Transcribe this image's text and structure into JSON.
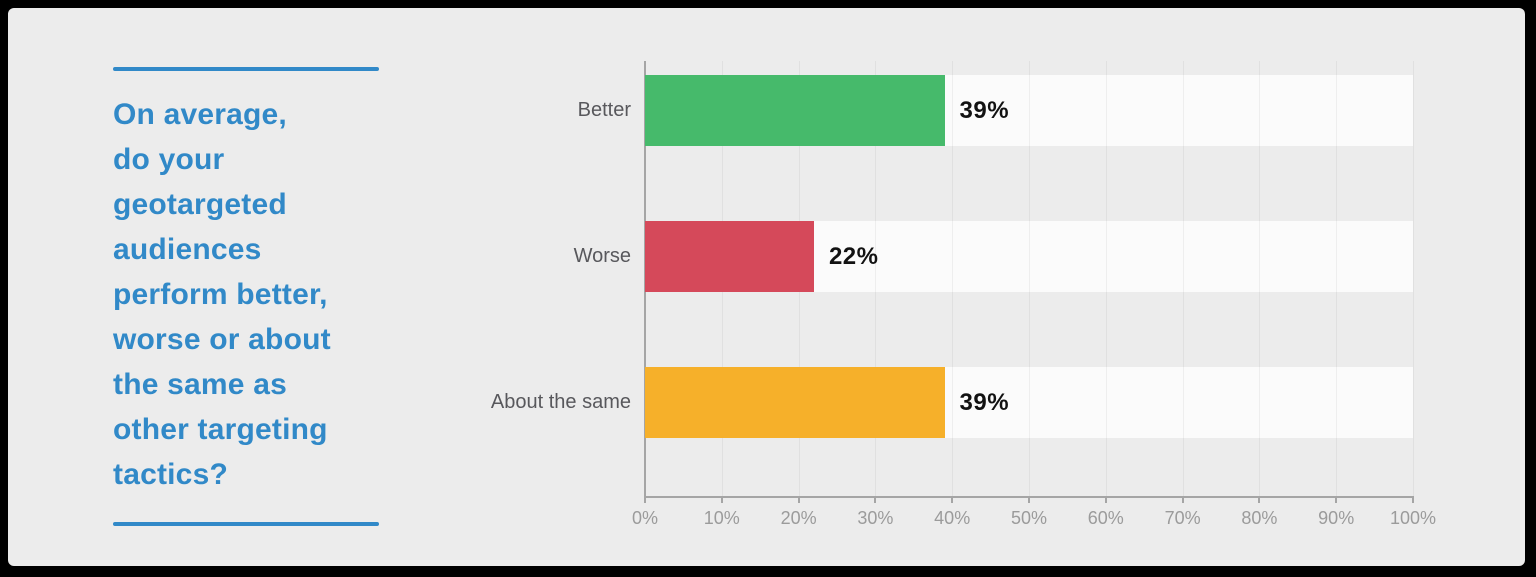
{
  "title_panel": {
    "title": "On average,\ndo your\ngeotargeted\naudiences\nperform better,\nworse or about\nthe same as\nother targeting\ntactics?",
    "accent_color": "#3189c8"
  },
  "chart_data": {
    "type": "bar",
    "orientation": "horizontal",
    "title": "On average, do your geotargeted audiences perform better, worse or about the same as other targeting tactics?",
    "categories": [
      "Better",
      "Worse",
      "About the same"
    ],
    "values": [
      39,
      22,
      39
    ],
    "value_labels": [
      "39%",
      "22%",
      "39%"
    ],
    "bar_colors": [
      "#46ba6b",
      "#d5495a",
      "#f6b02a"
    ],
    "x_ticks": [
      "0%",
      "10%",
      "20%",
      "30%",
      "40%",
      "50%",
      "60%",
      "70%",
      "80%",
      "90%",
      "100%"
    ],
    "xlim": [
      0,
      100
    ],
    "xlabel": "",
    "ylabel": "",
    "grid": true,
    "legend": false,
    "track_color": "#fbfbfb",
    "background_color": "#ececec",
    "axis_color": "#a5a5a5"
  }
}
